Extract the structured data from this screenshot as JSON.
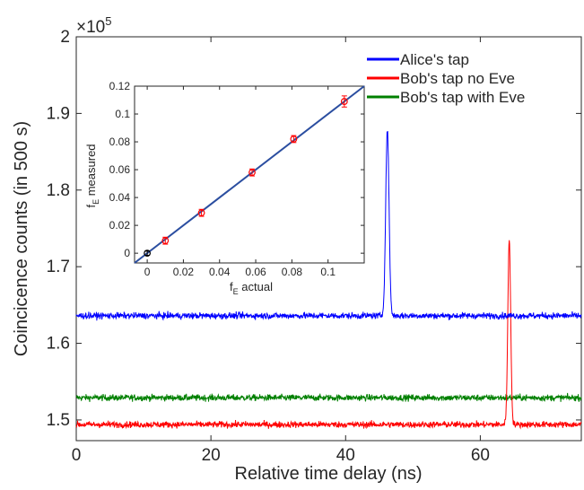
{
  "chart_data": [
    {
      "type": "line",
      "xlabel": "Relative time delay (ns)",
      "ylabel": "Coincicence counts (in 500 s)",
      "exponent_label_base": "×10",
      "exponent_label_power": "5",
      "xlim": [
        0,
        75
      ],
      "ylim": [
        1.473,
        2.0
      ],
      "xticks": [
        0,
        20,
        40,
        60
      ],
      "yticks": [
        1.5,
        1.6,
        1.7,
        1.8,
        1.9,
        2
      ],
      "legend_position": "top-right",
      "series": [
        {
          "name": "Alice's tap",
          "color": "#0000ff",
          "baseline": 1.636,
          "noise": 0.003,
          "peak_x": 46.2,
          "peak_y": 1.879,
          "peak_width": 0.35
        },
        {
          "name": "Bob's tap no Eve",
          "color": "#ff0000",
          "baseline": 1.494,
          "noise": 0.003,
          "peak_x": 64.3,
          "peak_y": 1.735,
          "peak_width": 0.3
        },
        {
          "name": "Bob's tap with Eve",
          "color": "#008000",
          "baseline": 1.529,
          "noise": 0.003,
          "peak_x": null,
          "peak_y": null,
          "peak_width": null
        }
      ]
    },
    {
      "type": "scatter",
      "xlabel_main": "f",
      "xlabel_sub": "E",
      "xlabel_rest": " actual",
      "ylabel_main": "f",
      "ylabel_sub": "E",
      "ylabel_rest": " measured",
      "xlim": [
        -0.007,
        0.12
      ],
      "ylim": [
        -0.007,
        0.12
      ],
      "xticks": [
        0,
        0.02,
        0.04,
        0.06,
        0.08,
        0.1
      ],
      "xtick_labels": [
        "0",
        "0.02",
        "0.04",
        "0.06",
        "0.08",
        "0.1"
      ],
      "yticks": [
        0,
        0.02,
        0.04,
        0.06,
        0.08,
        0.1,
        0.12
      ],
      "ytick_labels": [
        "0",
        "0.02",
        "0.04",
        "0.06",
        "0.08",
        "0.1",
        "0.12"
      ],
      "fit_line": {
        "color": "#2b4ea0",
        "x": [
          -0.007,
          0.12
        ],
        "y": [
          -0.007,
          0.12
        ]
      },
      "points": [
        {
          "x": 0.0,
          "y": 0.0,
          "err": 0.0015,
          "color": "#000000"
        },
        {
          "x": 0.01,
          "y": 0.009,
          "err": 0.0025,
          "color": "#ff0000"
        },
        {
          "x": 0.03,
          "y": 0.029,
          "err": 0.0025,
          "color": "#ff0000"
        },
        {
          "x": 0.058,
          "y": 0.058,
          "err": 0.0025,
          "color": "#ff0000"
        },
        {
          "x": 0.081,
          "y": 0.082,
          "err": 0.0025,
          "color": "#ff0000"
        },
        {
          "x": 0.109,
          "y": 0.109,
          "err": 0.004,
          "color": "#ff0000"
        }
      ]
    }
  ]
}
